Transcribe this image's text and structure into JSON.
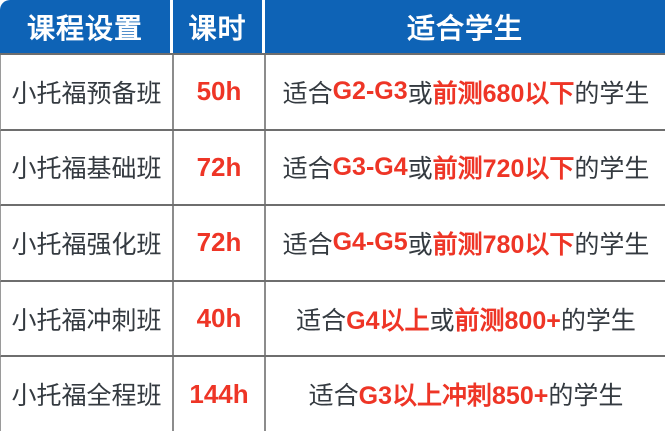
{
  "colors": {
    "header_blue": "#0e63b6",
    "highlight_red": "#ee3526",
    "text_dark": "#343a40",
    "grid_line": "#6e6e6e"
  },
  "header": {
    "columns": [
      {
        "label": "课程设置"
      },
      {
        "label": "课时"
      },
      {
        "label": "适合学生"
      }
    ]
  },
  "rows": [
    {
      "course": "小托福预备班",
      "hours": "50h",
      "desc": [
        {
          "t": "适合",
          "c": "dark"
        },
        {
          "t": "G2-G3",
          "c": "red"
        },
        {
          "t": "或",
          "c": "dark"
        },
        {
          "t": "前测680以下",
          "c": "red"
        },
        {
          "t": "的学生",
          "c": "dark"
        }
      ]
    },
    {
      "course": "小托福基础班",
      "hours": "72h",
      "desc": [
        {
          "t": "适合",
          "c": "dark"
        },
        {
          "t": "G3-G4",
          "c": "red"
        },
        {
          "t": "或",
          "c": "dark"
        },
        {
          "t": "前测720以下",
          "c": "red"
        },
        {
          "t": "的学生",
          "c": "dark"
        }
      ]
    },
    {
      "course": "小托福强化班",
      "hours": "72h",
      "desc": [
        {
          "t": "适合",
          "c": "dark"
        },
        {
          "t": "G4-G5",
          "c": "red"
        },
        {
          "t": "或",
          "c": "dark"
        },
        {
          "t": "前测780以下",
          "c": "red"
        },
        {
          "t": "的学生",
          "c": "dark"
        }
      ]
    },
    {
      "course": "小托福冲刺班",
      "hours": "40h",
      "desc": [
        {
          "t": "适合",
          "c": "dark"
        },
        {
          "t": "G4以上",
          "c": "red"
        },
        {
          "t": "或",
          "c": "dark"
        },
        {
          "t": "前测800+",
          "c": "red"
        },
        {
          "t": "的学生",
          "c": "dark"
        }
      ]
    },
    {
      "course": "小托福全程班",
      "hours": "144h",
      "desc": [
        {
          "t": "适合",
          "c": "dark"
        },
        {
          "t": "G3以上冲刺850+",
          "c": "red"
        },
        {
          "t": "的学生",
          "c": "dark"
        }
      ]
    }
  ],
  "chart_data": {
    "type": "table",
    "title": "",
    "columns": [
      "课程设置",
      "课时",
      "适合学生"
    ],
    "cells": [
      [
        "小托福预备班",
        "50h",
        "适合G2-G3或前测680以下的学生"
      ],
      [
        "小托福基础班",
        "72h",
        "适合G3-G4或前测720以下的学生"
      ],
      [
        "小托福强化班",
        "72h",
        "适合G4-G5或前测780以下的学生"
      ],
      [
        "小托福冲刺班",
        "40h",
        "适合G4以上或前测800+的学生"
      ],
      [
        "小托福全程班",
        "144h",
        "适合G3以上冲刺850+的学生"
      ]
    ]
  }
}
